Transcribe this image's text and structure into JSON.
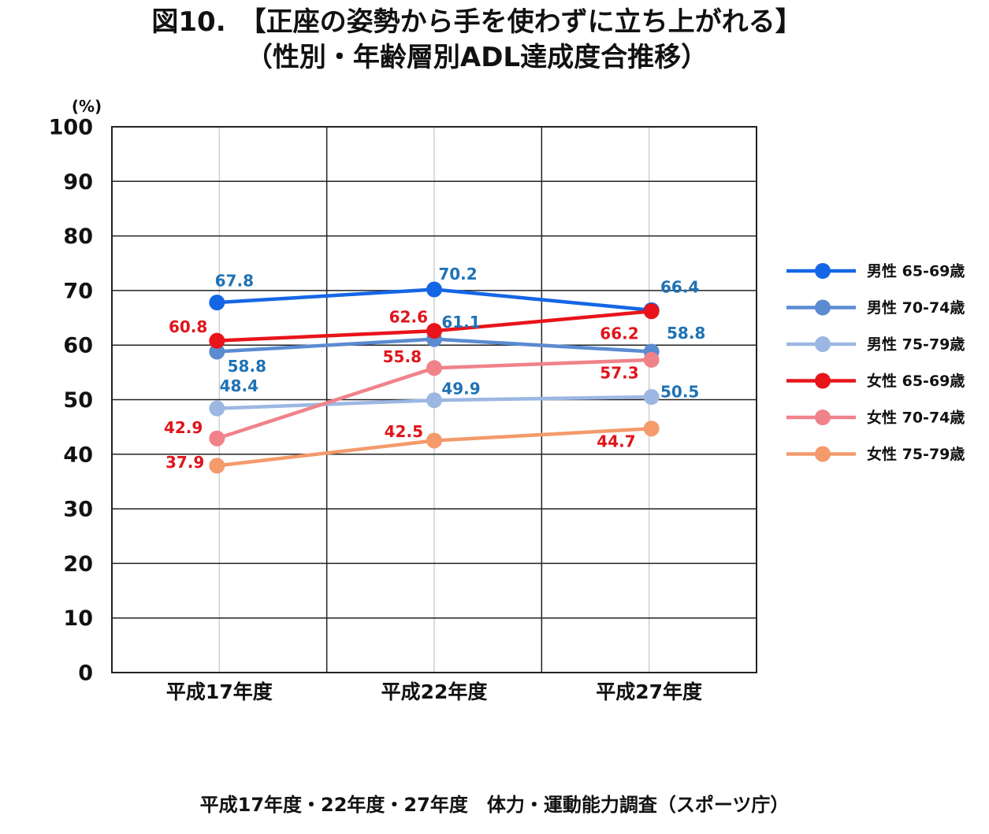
{
  "title_line1": "図10.　【正座の姿勢から手を使わずに立ち上がれる】",
  "title_line2": "（性別・年齢層別ADL達成度合推移）",
  "source": "平成17年度・22年度・27年度　体力・運動能力調査（スポーツ庁）",
  "chart_data": {
    "type": "line",
    "y_unit_label": "(%)",
    "ylim": [
      0,
      100
    ],
    "yticks": [
      0,
      10,
      20,
      30,
      40,
      50,
      60,
      70,
      80,
      90,
      100
    ],
    "categories": [
      "平成17年度",
      "平成22年度",
      "平成27年度"
    ],
    "grid": true,
    "legend_position": "right",
    "series": [
      {
        "name": "男性 65-69歳",
        "values": [
          67.8,
          70.2,
          66.4
        ],
        "color": "#1466e6",
        "label_color": "#1f72b5"
      },
      {
        "name": "男性 70-74歳",
        "values": [
          58.8,
          61.1,
          58.8
        ],
        "color": "#5b8bd1",
        "label_color": "#1f72b5"
      },
      {
        "name": "男性 75-79歳",
        "values": [
          48.4,
          49.9,
          50.5
        ],
        "color": "#9cb7e2",
        "label_color": "#1f72b5"
      },
      {
        "name": "女性 65-69歳",
        "values": [
          60.8,
          62.6,
          66.2
        ],
        "color": "#e8141a",
        "label_color": "#e0141b"
      },
      {
        "name": "女性 70-74歳",
        "values": [
          42.9,
          55.8,
          57.3
        ],
        "color": "#f0828a",
        "label_color": "#e0141b"
      },
      {
        "name": "女性 75-79歳",
        "values": [
          37.9,
          42.5,
          44.7
        ],
        "color": "#f49a6b",
        "label_color": "#e0141b"
      }
    ]
  }
}
